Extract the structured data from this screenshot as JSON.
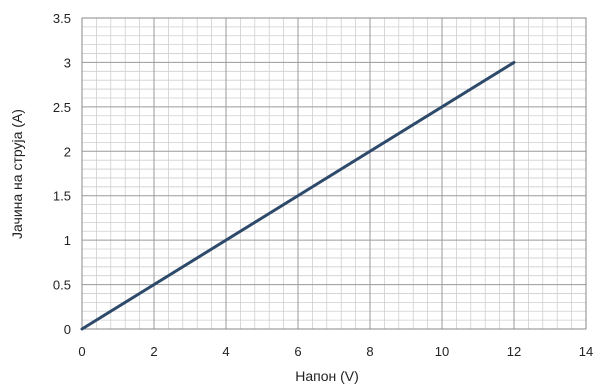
{
  "chart_data": {
    "type": "line",
    "title": "",
    "xlabel": "Напон (V)",
    "ylabel": "Јачина на струја (A)",
    "xlim": [
      0,
      14
    ],
    "ylim": [
      0,
      3.5
    ],
    "x_ticks": [
      "0",
      "2",
      "4",
      "6",
      "8",
      "10",
      "12",
      "14"
    ],
    "y_ticks": [
      "0",
      "0.5",
      "1",
      "1.5",
      "2",
      "2.5",
      "3",
      "3.5"
    ],
    "grid": true,
    "legend": "none",
    "series": [
      {
        "x": [
          0,
          12
        ],
        "y": [
          0,
          3
        ],
        "color": "#2e4a6b"
      }
    ],
    "colors": {
      "major_grid": "#9a9a9a",
      "minor_grid": "#cfcfcf",
      "line": "#2e4a6b"
    }
  }
}
